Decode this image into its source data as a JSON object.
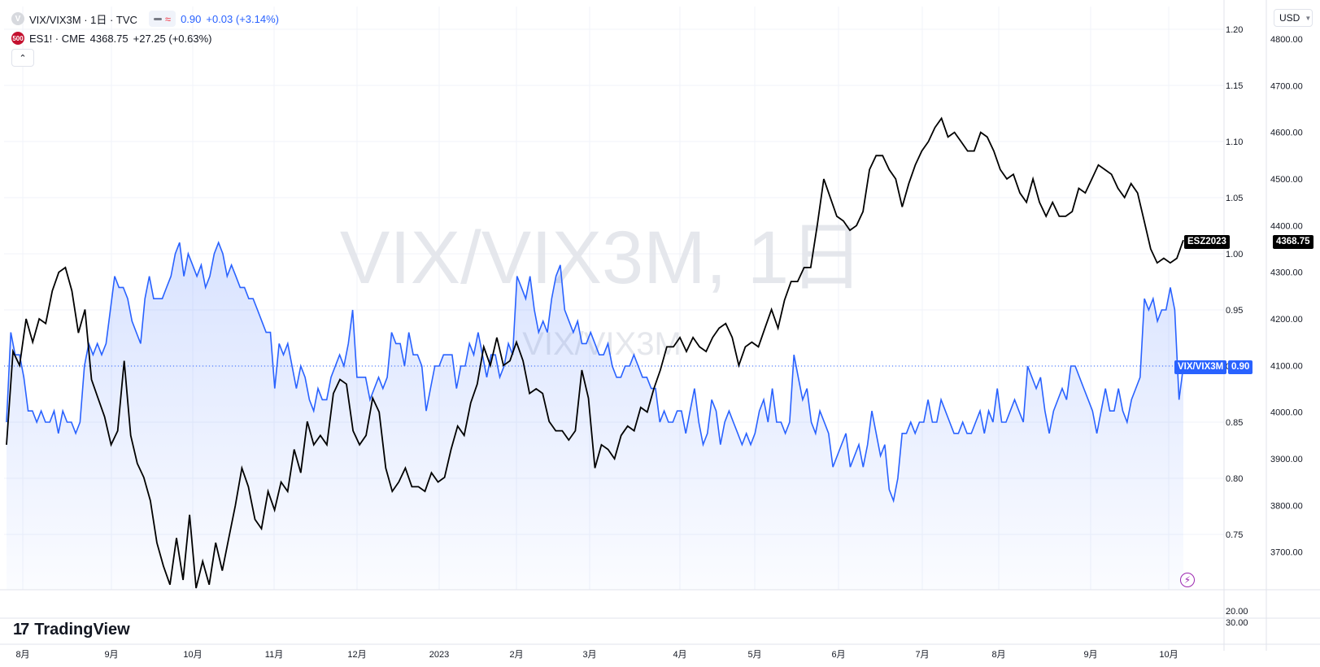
{
  "legend": {
    "main_symbol": "VIX/VIX3M · 1日 · TVC",
    "main_value": "0.90",
    "main_change": "+0.03 (+3.14%)",
    "compare_icon": "500",
    "compare_symbol": "ES1! · CME",
    "compare_value": "4368.75",
    "compare_change": "+27.25 (+0.63%)"
  },
  "watermark": {
    "line1": "VIX/VIX3M, 1日",
    "line2": "VIX/VIX3M"
  },
  "logo": {
    "mark": "17",
    "text": "TradingView"
  },
  "currency": {
    "label": "USD"
  },
  "badges": {
    "es_name": "ESZ2023",
    "es_value": "4368.75",
    "vix_name": "VIX/VIX3M",
    "vix_value": "0.90"
  },
  "colors": {
    "vix_line": "#2962ff",
    "es_line": "#000000",
    "grid": "#f0f3fa",
    "text": "#131722"
  },
  "chart_data": {
    "type": "line",
    "x_labels": [
      "8月",
      "9月",
      "10月",
      "11月",
      "12月",
      "2023",
      "2月",
      "3月",
      "4月",
      "5月",
      "6月",
      "7月",
      "8月",
      "9月",
      "10月"
    ],
    "left_ticks": [
      "1.20",
      "1.15",
      "1.10",
      "1.05",
      "1.00",
      "0.95",
      "0.90",
      "0.85",
      "0.80",
      "0.75"
    ],
    "right_ticks": [
      "4800.00",
      "4700.00",
      "4600.00",
      "4500.00",
      "4400.00",
      "4300.00",
      "4200.00",
      "4100.00",
      "4000.00",
      "3900.00",
      "3800.00",
      "3700.00"
    ],
    "sub_pane_ticks": [
      "20.00",
      "30.00"
    ],
    "vix_ylim": [
      0.7,
      1.22
    ],
    "es_ylim": [
      3600,
      4830
    ],
    "series": [
      {
        "name": "VIX/VIX3M",
        "values": [
          0.85,
          0.93,
          0.91,
          0.91,
          0.89,
          0.86,
          0.86,
          0.85,
          0.86,
          0.85,
          0.85,
          0.86,
          0.84,
          0.86,
          0.85,
          0.85,
          0.84,
          0.85,
          0.9,
          0.92,
          0.91,
          0.92,
          0.91,
          0.92,
          0.95,
          0.98,
          0.97,
          0.97,
          0.96,
          0.94,
          0.93,
          0.92,
          0.96,
          0.98,
          0.96,
          0.96,
          0.96,
          0.97,
          0.98,
          1.0,
          1.01,
          0.98,
          1.0,
          0.99,
          0.98,
          0.99,
          0.97,
          0.98,
          1.0,
          1.01,
          1.0,
          0.98,
          0.99,
          0.98,
          0.97,
          0.97,
          0.96,
          0.96,
          0.95,
          0.94,
          0.93,
          0.93,
          0.88,
          0.92,
          0.91,
          0.92,
          0.9,
          0.88,
          0.9,
          0.89,
          0.87,
          0.86,
          0.88,
          0.87,
          0.87,
          0.89,
          0.9,
          0.91,
          0.9,
          0.92,
          0.95,
          0.89,
          0.89,
          0.89,
          0.87,
          0.88,
          0.89,
          0.88,
          0.89,
          0.93,
          0.92,
          0.92,
          0.9,
          0.93,
          0.91,
          0.91,
          0.9,
          0.86,
          0.88,
          0.9,
          0.9,
          0.91,
          0.91,
          0.91,
          0.88,
          0.9,
          0.9,
          0.92,
          0.91,
          0.93,
          0.91,
          0.89,
          0.91,
          0.91,
          0.89,
          0.9,
          0.92,
          0.91,
          0.98,
          0.97,
          0.96,
          0.98,
          0.95,
          0.93,
          0.94,
          0.93,
          0.96,
          0.98,
          0.99,
          0.95,
          0.94,
          0.93,
          0.94,
          0.92,
          0.92,
          0.93,
          0.92,
          0.91,
          0.91,
          0.92,
          0.9,
          0.89,
          0.89,
          0.9,
          0.9,
          0.91,
          0.9,
          0.89,
          0.89,
          0.88,
          0.88,
          0.85,
          0.86,
          0.85,
          0.85,
          0.86,
          0.86,
          0.84,
          0.86,
          0.88,
          0.85,
          0.83,
          0.84,
          0.87,
          0.86,
          0.83,
          0.85,
          0.86,
          0.85,
          0.84,
          0.83,
          0.84,
          0.83,
          0.84,
          0.86,
          0.87,
          0.85,
          0.88,
          0.85,
          0.85,
          0.84,
          0.85,
          0.91,
          0.89,
          0.87,
          0.88,
          0.85,
          0.84,
          0.86,
          0.85,
          0.84,
          0.81,
          0.82,
          0.83,
          0.84,
          0.81,
          0.82,
          0.83,
          0.81,
          0.83,
          0.86,
          0.84,
          0.82,
          0.83,
          0.79,
          0.78,
          0.8,
          0.84,
          0.84,
          0.85,
          0.84,
          0.85,
          0.85,
          0.87,
          0.85,
          0.85,
          0.87,
          0.86,
          0.85,
          0.84,
          0.84,
          0.85,
          0.84,
          0.84,
          0.85,
          0.86,
          0.84,
          0.86,
          0.85,
          0.88,
          0.85,
          0.85,
          0.86,
          0.87,
          0.86,
          0.85,
          0.9,
          0.89,
          0.88,
          0.89,
          0.86,
          0.84,
          0.86,
          0.87,
          0.88,
          0.87,
          0.9,
          0.9,
          0.89,
          0.88,
          0.87,
          0.86,
          0.84,
          0.86,
          0.88,
          0.86,
          0.86,
          0.88,
          0.86,
          0.85,
          0.87,
          0.88,
          0.89,
          0.96,
          0.95,
          0.96,
          0.94,
          0.95,
          0.95,
          0.97,
          0.95,
          0.87,
          0.9
        ]
      },
      {
        "name": "ESZ2023",
        "values": [
          3930,
          4130,
          4100,
          4200,
          4150,
          4200,
          4190,
          4260,
          4300,
          4310,
          4260,
          4170,
          4220,
          4070,
          4030,
          3990,
          3930,
          3960,
          4110,
          3950,
          3890,
          3860,
          3810,
          3720,
          3670,
          3630,
          3730,
          3640,
          3780,
          3620,
          3680,
          3630,
          3720,
          3660,
          3730,
          3800,
          3880,
          3840,
          3770,
          3750,
          3830,
          3790,
          3850,
          3830,
          3920,
          3870,
          3980,
          3930,
          3950,
          3930,
          4040,
          4070,
          4060,
          3960,
          3930,
          3950,
          4030,
          4000,
          3880,
          3830,
          3850,
          3880,
          3840,
          3840,
          3830,
          3870,
          3850,
          3860,
          3920,
          3970,
          3950,
          4020,
          4060,
          4140,
          4100,
          4160,
          4100,
          4110,
          4150,
          4110,
          4040,
          4050,
          4040,
          3980,
          3960,
          3960,
          3940,
          3960,
          4090,
          4030,
          3880,
          3930,
          3920,
          3900,
          3950,
          3970,
          3960,
          4010,
          4000,
          4050,
          4090,
          4140,
          4140,
          4160,
          4130,
          4160,
          4140,
          4130,
          4160,
          4180,
          4190,
          4160,
          4100,
          4140,
          4150,
          4140,
          4180,
          4220,
          4180,
          4240,
          4280,
          4280,
          4310,
          4310,
          4400,
          4500,
          4460,
          4420,
          4410,
          4390,
          4400,
          4430,
          4520,
          4550,
          4550,
          4520,
          4500,
          4440,
          4490,
          4530,
          4560,
          4580,
          4610,
          4630,
          4590,
          4600,
          4580,
          4560,
          4560,
          4600,
          4590,
          4560,
          4520,
          4500,
          4510,
          4470,
          4450,
          4500,
          4450,
          4420,
          4450,
          4420,
          4420,
          4430,
          4480,
          4470,
          4500,
          4530,
          4520,
          4510,
          4480,
          4460,
          4490,
          4470,
          4410,
          4350,
          4320,
          4330,
          4320,
          4330,
          4368.75
        ]
      }
    ]
  }
}
